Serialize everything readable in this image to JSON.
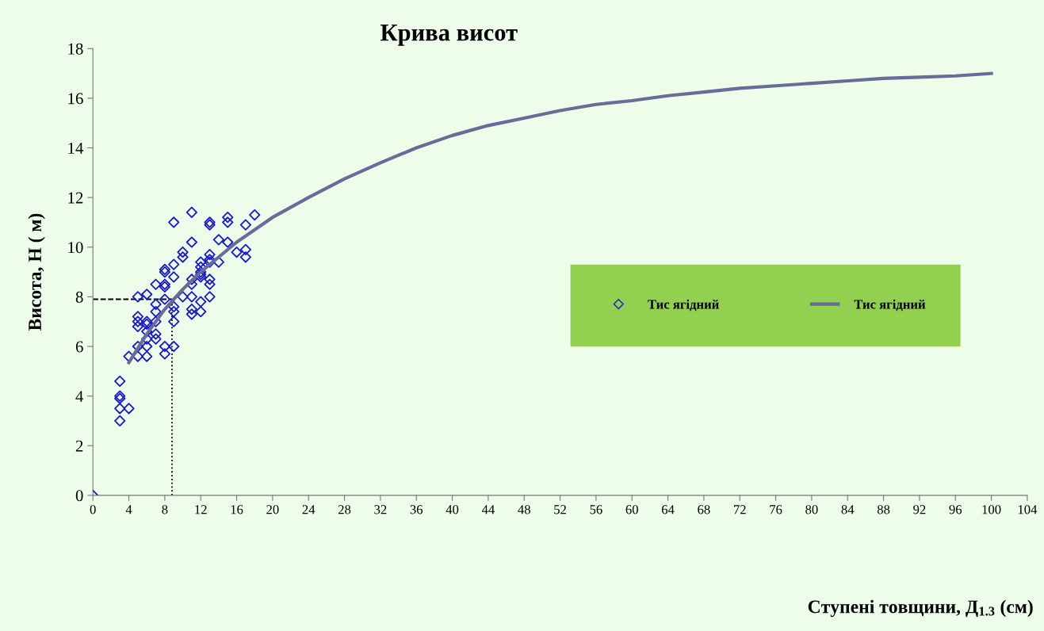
{
  "chart_data": {
    "type": "scatter",
    "title": "Крива висот",
    "xlabel": "Ступені товщини, Д$_{1.3}$ (см)",
    "ylabel": "Висота, Н ( м)",
    "xlim": [
      0,
      104
    ],
    "xticks": [
      0,
      4,
      8,
      12,
      16,
      20,
      24,
      28,
      32,
      36,
      40,
      44,
      48,
      52,
      56,
      60,
      64,
      68,
      72,
      76,
      80,
      84,
      88,
      92,
      96,
      100,
      104
    ],
    "ylim": [
      0,
      18
    ],
    "yticks": [
      0,
      2,
      4,
      6,
      8,
      10,
      12,
      14,
      16,
      18
    ],
    "grid": false,
    "legend": "right",
    "series": [
      {
        "name": "Тис ягідний",
        "marker": "diamond",
        "color": "#1a1acd",
        "x": [
          0,
          3,
          3,
          3,
          3,
          3,
          4,
          4,
          5,
          5,
          5,
          5,
          5,
          5,
          6,
          6,
          6,
          6,
          6,
          6,
          6,
          7,
          7,
          7,
          7,
          7,
          7,
          8,
          8,
          8,
          8,
          8,
          8,
          8,
          9,
          9,
          9,
          9,
          9,
          9,
          9,
          10,
          10,
          10,
          11,
          11,
          11,
          11,
          11,
          11,
          11,
          12,
          12,
          12,
          12,
          12,
          12,
          12,
          13,
          13,
          13,
          13,
          13,
          13,
          13,
          13,
          14,
          14,
          15,
          15,
          15,
          16,
          17,
          17,
          17,
          18
        ],
        "values": [
          0,
          4.6,
          4.0,
          3.9,
          3.5,
          3.0,
          5.6,
          3.5,
          8.0,
          7.2,
          7.0,
          6.8,
          6.0,
          5.6,
          8.1,
          7.0,
          6.9,
          6.6,
          6.3,
          6.0,
          5.6,
          8.5,
          7.7,
          7.4,
          7.0,
          6.5,
          6.3,
          9.1,
          9.0,
          8.5,
          8.4,
          7.9,
          6.0,
          5.7,
          11.0,
          9.3,
          8.8,
          7.6,
          7.4,
          7.0,
          6.0,
          9.8,
          9.6,
          8.0,
          11.4,
          10.2,
          8.7,
          8.5,
          8.0,
          7.5,
          7.3,
          9.4,
          9.2,
          9.0,
          8.9,
          8.8,
          7.8,
          7.4,
          11.0,
          10.9,
          9.7,
          9.5,
          9.4,
          8.7,
          8.5,
          8.0,
          10.3,
          9.4,
          11.2,
          11.0,
          10.2,
          9.8,
          10.9,
          9.9,
          9.6,
          11.3
        ]
      },
      {
        "name": "Тис ягідний",
        "type": "line",
        "marker": "none",
        "color": "#6b6b9a",
        "line_style": "solid",
        "x": [
          4,
          6,
          8,
          10,
          12,
          16,
          20,
          24,
          28,
          32,
          36,
          40,
          44,
          48,
          52,
          56,
          60,
          64,
          68,
          72,
          76,
          80,
          84,
          88,
          92,
          96,
          100
        ],
        "values": [
          5.35,
          6.5,
          7.5,
          8.3,
          9.0,
          10.2,
          11.2,
          12.0,
          12.75,
          13.4,
          14.0,
          14.5,
          14.9,
          15.2,
          15.5,
          15.75,
          15.9,
          16.1,
          16.25,
          16.4,
          16.5,
          16.6,
          16.7,
          16.8,
          16.85,
          16.9,
          17.0
        ]
      }
    ],
    "ref_lines": [
      {
        "axis": "x",
        "value": 8.8,
        "line_style": "dotted",
        "color": "#000000"
      },
      {
        "axis": "y",
        "value": 7.9,
        "line_style": "dashed",
        "color": "#000000"
      }
    ]
  }
}
